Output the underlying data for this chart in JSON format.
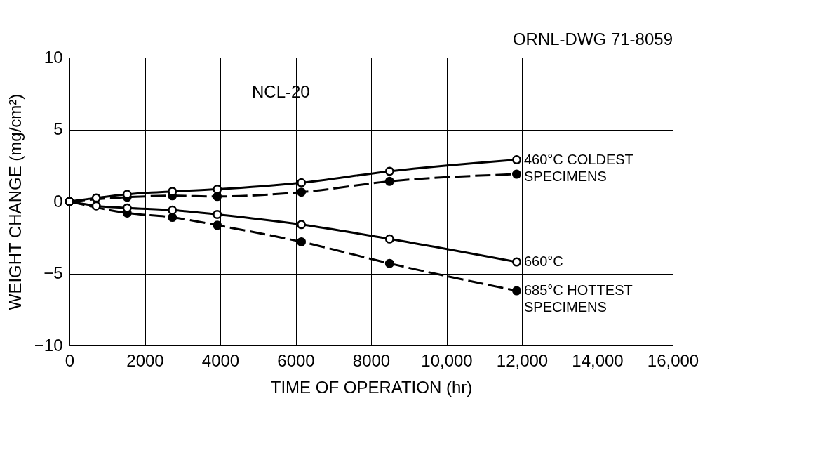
{
  "chart_data": {
    "type": "line",
    "xlabel": "TIME OF OPERATION (hr)",
    "ylabel": "WEIGHT CHANGE (mg/cm²)",
    "xlim": [
      0,
      16000
    ],
    "ylim": [
      -10,
      10
    ],
    "xticks": [
      0,
      2000,
      4000,
      6000,
      8000,
      {
        "value": 10000,
        "label": "10,000"
      },
      {
        "value": 12000,
        "label": "12,000"
      },
      {
        "value": 14000,
        "label": "14,000"
      },
      {
        "value": 16000,
        "label": "16,000"
      }
    ],
    "yticks": [
      -10,
      -5,
      0,
      5,
      10
    ],
    "grid": true,
    "marker": "circle",
    "series": [
      {
        "color": "#000000",
        "line_style": "solid",
        "x": [
          0,
          710,
          1530,
          2730,
          3920,
          6150,
          8490,
          11860
        ],
        "values": [
          0,
          0.25,
          0.5,
          0.7,
          0.85,
          1.3,
          2.1,
          2.9
        ]
      },
      {
        "color": "#000000",
        "line_style": "dashed",
        "x": [
          0,
          1530,
          2730,
          3920,
          6150,
          8490,
          11860
        ],
        "values": [
          0,
          0.3,
          0.4,
          0.35,
          0.65,
          1.4,
          1.9
        ]
      },
      {
        "color": "#000000",
        "line_style": "solid",
        "x": [
          0,
          710,
          1530,
          2730,
          3920,
          6150,
          8490,
          11860
        ],
        "values": [
          0,
          -0.3,
          -0.45,
          -0.6,
          -0.9,
          -1.6,
          -2.6,
          -4.2
        ]
      },
      {
        "color": "#000000",
        "line_style": "dashed",
        "x": [
          0,
          1530,
          2730,
          3920,
          6150,
          8490,
          11860
        ],
        "values": [
          0,
          -0.8,
          -1.1,
          -1.65,
          -2.8,
          -4.3,
          -6.2
        ]
      }
    ],
    "annotations": [
      "ORNL-DWG 71-8059",
      "NCL-20",
      "460°C COLDEST\nSPECIMENS",
      "660°C",
      "685°C HOTTEST\nSPECIMENS"
    ]
  }
}
